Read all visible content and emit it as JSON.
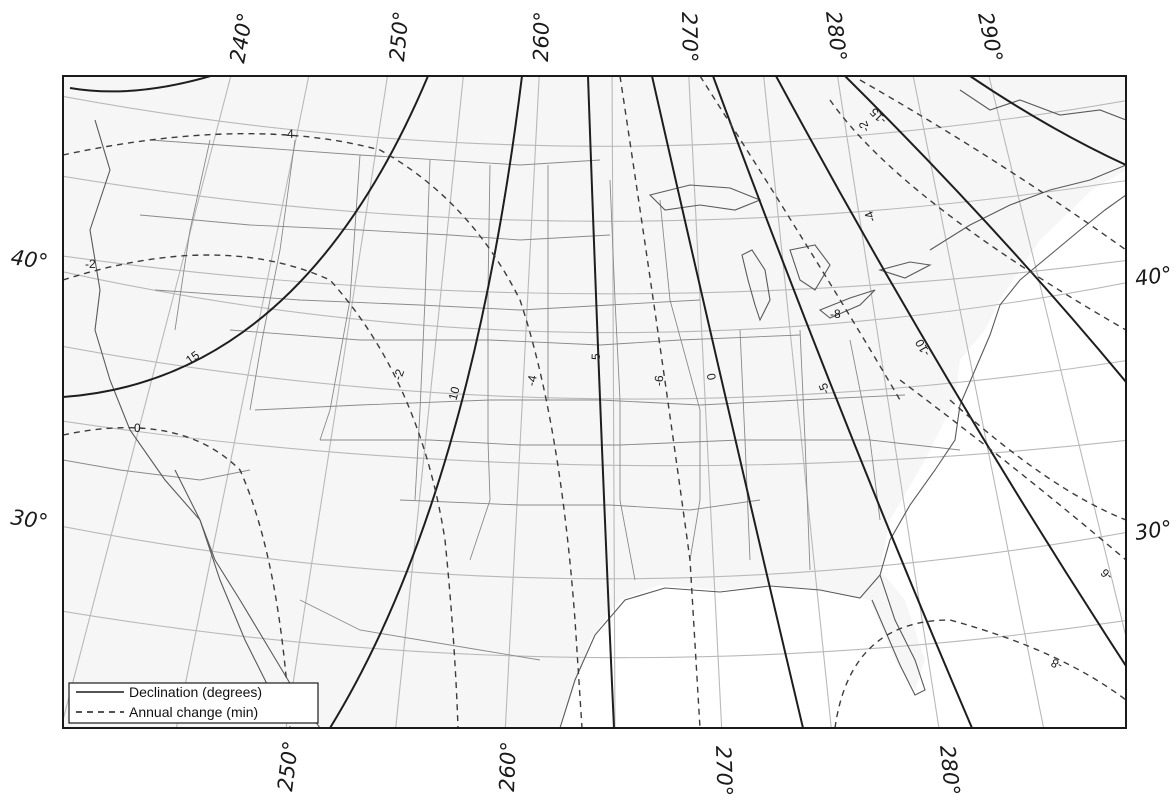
{
  "map": {
    "legend": {
      "solid_label": "Declination (degrees)",
      "dashed_label": "Annual change (min)"
    },
    "longitude_labels": {
      "top": [
        "240°",
        "250°",
        "260°",
        "270°",
        "280°",
        "290°"
      ],
      "bottom": [
        "250°",
        "260°",
        "270°",
        "280°"
      ]
    },
    "latitude_labels": {
      "left": [
        "40°",
        "30°"
      ],
      "right": [
        "40°",
        "30°"
      ]
    },
    "declination_labels": [
      "15",
      "10",
      "5",
      "0",
      "-5",
      "-10",
      "-15"
    ],
    "annual_change_labels": [
      "-4",
      "-2",
      "0",
      "-2",
      "-4",
      "-6",
      "-2",
      "-4",
      "-8",
      "-6",
      "-8"
    ]
  }
}
